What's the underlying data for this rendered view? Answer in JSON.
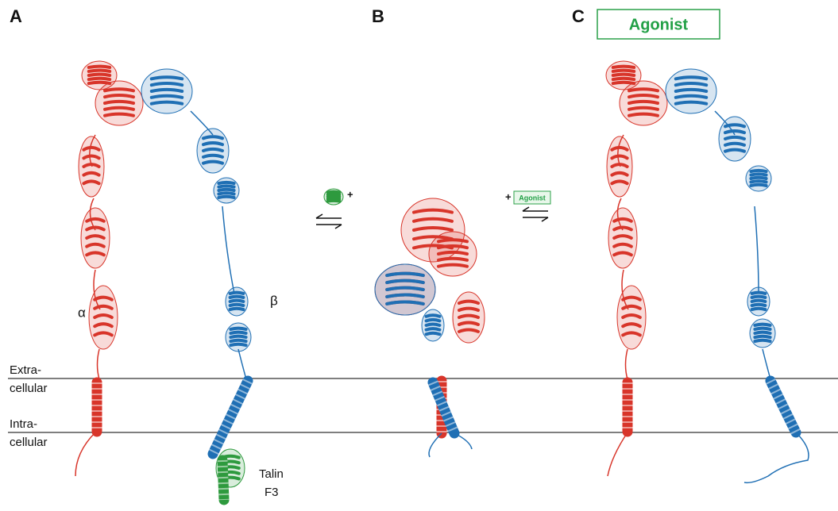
{
  "panel_labels": [
    "A",
    "B",
    "C"
  ],
  "agonist_box": "Agonist",
  "chain_labels": {
    "alpha": "α",
    "beta": "β"
  },
  "membrane_labels": {
    "extracellular": [
      "Extra-",
      "cellular"
    ],
    "intracellular": [
      "Intra-",
      "cellular"
    ]
  },
  "talin_label": [
    "Talin",
    "F3"
  ],
  "equilibria": [
    {
      "plus": "+"
    },
    {
      "plus": "+",
      "agonist": "Agonist"
    }
  ]
}
